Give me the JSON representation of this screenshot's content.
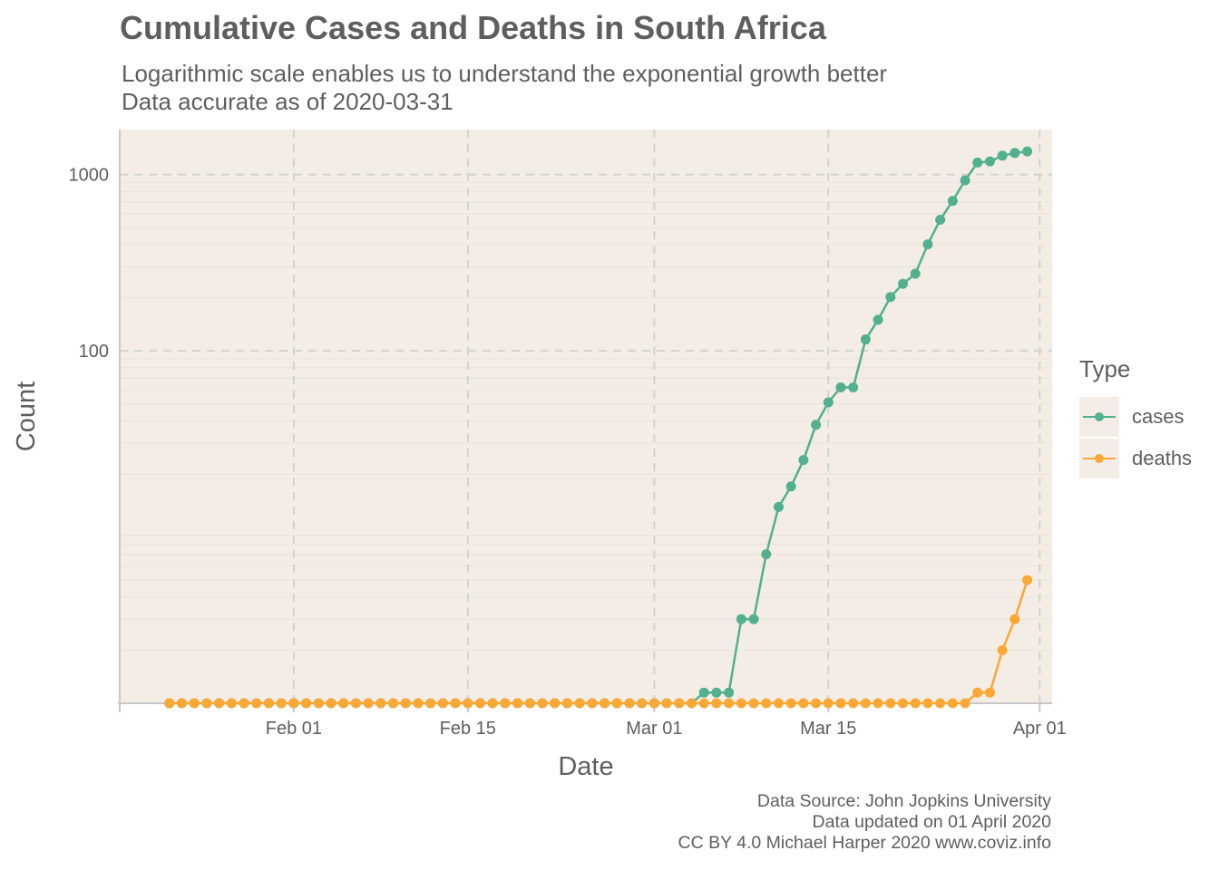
{
  "title": "Cumulative Cases and Deaths in South Africa",
  "subtitle_line1": "Logarithmic scale enables us to understand the exponential growth better",
  "subtitle_line2": "Data accurate as of 2020-03-31",
  "caption_line1": "Data Source: John Jopkins University",
  "caption_line2": "Data updated on 01 April 2020",
  "caption_line3": "CC BY 4.0 Michael Harper 2020 www.coviz.info",
  "colors": {
    "panel": "#f3ede6",
    "cases": "#52b08e",
    "deaths": "#f9a836",
    "grid": "#d2d2d2"
  },
  "chart_data": {
    "type": "line",
    "title": "Cumulative Cases and Deaths in South Africa",
    "xlabel": "Date",
    "ylabel": "Count",
    "y_scale": "log",
    "ylim": [
      1,
      1800
    ],
    "x_range": [
      "2020-01-18",
      "2020-04-02"
    ],
    "x_ticks": [
      {
        "date": "2020-02-01",
        "label": "Feb 01"
      },
      {
        "date": "2020-02-15",
        "label": "Feb 15"
      },
      {
        "date": "2020-03-01",
        "label": "Mar 01"
      },
      {
        "date": "2020-03-15",
        "label": "Mar 15"
      },
      {
        "date": "2020-04-01",
        "label": "Apr 01"
      }
    ],
    "y_ticks": [
      100,
      1000
    ],
    "grid": true,
    "legend_title": "Type",
    "legend_position": "right",
    "series": [
      {
        "name": "cases",
        "color": "#52b08e",
        "points": [
          [
            "2020-01-22",
            1
          ],
          [
            "2020-01-23",
            1
          ],
          [
            "2020-01-24",
            1
          ],
          [
            "2020-01-25",
            1
          ],
          [
            "2020-01-26",
            1
          ],
          [
            "2020-01-27",
            1
          ],
          [
            "2020-01-28",
            1
          ],
          [
            "2020-01-29",
            1
          ],
          [
            "2020-01-30",
            1
          ],
          [
            "2020-01-31",
            1
          ],
          [
            "2020-02-01",
            1
          ],
          [
            "2020-02-02",
            1
          ],
          [
            "2020-02-03",
            1
          ],
          [
            "2020-02-04",
            1
          ],
          [
            "2020-02-05",
            1
          ],
          [
            "2020-02-06",
            1
          ],
          [
            "2020-02-07",
            1
          ],
          [
            "2020-02-08",
            1
          ],
          [
            "2020-02-09",
            1
          ],
          [
            "2020-02-10",
            1
          ],
          [
            "2020-02-11",
            1
          ],
          [
            "2020-02-12",
            1
          ],
          [
            "2020-02-13",
            1
          ],
          [
            "2020-02-14",
            1
          ],
          [
            "2020-02-15",
            1
          ],
          [
            "2020-02-16",
            1
          ],
          [
            "2020-02-17",
            1
          ],
          [
            "2020-02-18",
            1
          ],
          [
            "2020-02-19",
            1
          ],
          [
            "2020-02-20",
            1
          ],
          [
            "2020-02-21",
            1
          ],
          [
            "2020-02-22",
            1
          ],
          [
            "2020-02-23",
            1
          ],
          [
            "2020-02-24",
            1
          ],
          [
            "2020-02-25",
            1
          ],
          [
            "2020-02-26",
            1
          ],
          [
            "2020-02-27",
            1
          ],
          [
            "2020-02-28",
            1
          ],
          [
            "2020-02-29",
            1
          ],
          [
            "2020-03-01",
            1
          ],
          [
            "2020-03-02",
            1
          ],
          [
            "2020-03-03",
            1
          ],
          [
            "2020-03-04",
            1
          ],
          [
            "2020-03-05",
            1.15
          ],
          [
            "2020-03-06",
            1.15
          ],
          [
            "2020-03-07",
            1.15
          ],
          [
            "2020-03-08",
            3
          ],
          [
            "2020-03-09",
            3
          ],
          [
            "2020-03-10",
            7
          ],
          [
            "2020-03-11",
            13
          ],
          [
            "2020-03-12",
            17
          ],
          [
            "2020-03-13",
            24
          ],
          [
            "2020-03-14",
            38
          ],
          [
            "2020-03-15",
            51
          ],
          [
            "2020-03-16",
            62
          ],
          [
            "2020-03-17",
            62
          ],
          [
            "2020-03-18",
            116
          ],
          [
            "2020-03-19",
            150
          ],
          [
            "2020-03-20",
            202
          ],
          [
            "2020-03-21",
            240
          ],
          [
            "2020-03-22",
            274
          ],
          [
            "2020-03-23",
            402
          ],
          [
            "2020-03-24",
            554
          ],
          [
            "2020-03-25",
            709
          ],
          [
            "2020-03-26",
            927
          ],
          [
            "2020-03-27",
            1170
          ],
          [
            "2020-03-28",
            1187
          ],
          [
            "2020-03-29",
            1280
          ],
          [
            "2020-03-30",
            1326
          ],
          [
            "2020-03-31",
            1353
          ]
        ]
      },
      {
        "name": "deaths",
        "color": "#f9a836",
        "points": [
          [
            "2020-01-22",
            1
          ],
          [
            "2020-01-23",
            1
          ],
          [
            "2020-01-24",
            1
          ],
          [
            "2020-01-25",
            1
          ],
          [
            "2020-01-26",
            1
          ],
          [
            "2020-01-27",
            1
          ],
          [
            "2020-01-28",
            1
          ],
          [
            "2020-01-29",
            1
          ],
          [
            "2020-01-30",
            1
          ],
          [
            "2020-01-31",
            1
          ],
          [
            "2020-02-01",
            1
          ],
          [
            "2020-02-02",
            1
          ],
          [
            "2020-02-03",
            1
          ],
          [
            "2020-02-04",
            1
          ],
          [
            "2020-02-05",
            1
          ],
          [
            "2020-02-06",
            1
          ],
          [
            "2020-02-07",
            1
          ],
          [
            "2020-02-08",
            1
          ],
          [
            "2020-02-09",
            1
          ],
          [
            "2020-02-10",
            1
          ],
          [
            "2020-02-11",
            1
          ],
          [
            "2020-02-12",
            1
          ],
          [
            "2020-02-13",
            1
          ],
          [
            "2020-02-14",
            1
          ],
          [
            "2020-02-15",
            1
          ],
          [
            "2020-02-16",
            1
          ],
          [
            "2020-02-17",
            1
          ],
          [
            "2020-02-18",
            1
          ],
          [
            "2020-02-19",
            1
          ],
          [
            "2020-02-20",
            1
          ],
          [
            "2020-02-21",
            1
          ],
          [
            "2020-02-22",
            1
          ],
          [
            "2020-02-23",
            1
          ],
          [
            "2020-02-24",
            1
          ],
          [
            "2020-02-25",
            1
          ],
          [
            "2020-02-26",
            1
          ],
          [
            "2020-02-27",
            1
          ],
          [
            "2020-02-28",
            1
          ],
          [
            "2020-02-29",
            1
          ],
          [
            "2020-03-01",
            1
          ],
          [
            "2020-03-02",
            1
          ],
          [
            "2020-03-03",
            1
          ],
          [
            "2020-03-04",
            1
          ],
          [
            "2020-03-05",
            1
          ],
          [
            "2020-03-06",
            1
          ],
          [
            "2020-03-07",
            1
          ],
          [
            "2020-03-08",
            1
          ],
          [
            "2020-03-09",
            1
          ],
          [
            "2020-03-10",
            1
          ],
          [
            "2020-03-11",
            1
          ],
          [
            "2020-03-12",
            1
          ],
          [
            "2020-03-13",
            1
          ],
          [
            "2020-03-14",
            1
          ],
          [
            "2020-03-15",
            1
          ],
          [
            "2020-03-16",
            1
          ],
          [
            "2020-03-17",
            1
          ],
          [
            "2020-03-18",
            1
          ],
          [
            "2020-03-19",
            1
          ],
          [
            "2020-03-20",
            1
          ],
          [
            "2020-03-21",
            1
          ],
          [
            "2020-03-22",
            1
          ],
          [
            "2020-03-23",
            1
          ],
          [
            "2020-03-24",
            1
          ],
          [
            "2020-03-25",
            1
          ],
          [
            "2020-03-26",
            1
          ],
          [
            "2020-03-27",
            1.15
          ],
          [
            "2020-03-28",
            1.15
          ],
          [
            "2020-03-29",
            2
          ],
          [
            "2020-03-30",
            3
          ],
          [
            "2020-03-31",
            5
          ]
        ]
      }
    ]
  }
}
